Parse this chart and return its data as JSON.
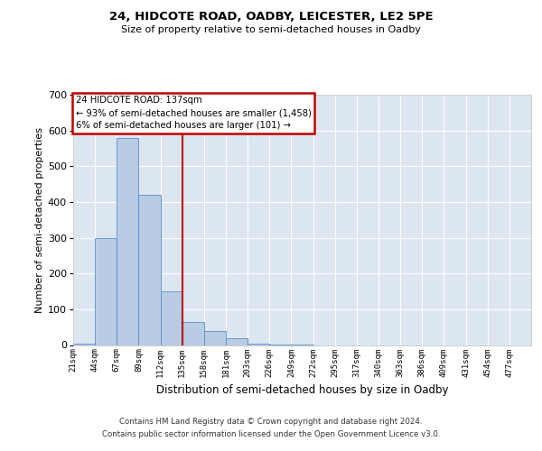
{
  "title_line1": "24, HIDCOTE ROAD, OADBY, LEICESTER, LE2 5PE",
  "title_line2": "Size of property relative to semi-detached houses in Oadby",
  "xlabel": "Distribution of semi-detached houses by size in Oadby",
  "ylabel": "Number of semi-detached properties",
  "bin_labels": [
    "21sqm",
    "44sqm",
    "67sqm",
    "89sqm",
    "112sqm",
    "135sqm",
    "158sqm",
    "181sqm",
    "203sqm",
    "226sqm",
    "249sqm",
    "272sqm",
    "295sqm",
    "317sqm",
    "340sqm",
    "363sqm",
    "386sqm",
    "409sqm",
    "431sqm",
    "454sqm",
    "477sqm"
  ],
  "bar_values": [
    5,
    300,
    580,
    420,
    150,
    65,
    40,
    20,
    5,
    2,
    1,
    0,
    0,
    0,
    0,
    0,
    0,
    0,
    0,
    0,
    0
  ],
  "bar_color": "#b8cce4",
  "bar_edge_color": "#5b8dc8",
  "vline_x": 5,
  "vline_color": "#c00000",
  "ylim": [
    0,
    700
  ],
  "yticks": [
    0,
    100,
    200,
    300,
    400,
    500,
    600,
    700
  ],
  "annotation_title": "24 HIDCOTE ROAD: 137sqm",
  "annotation_line1": "← 93% of semi-detached houses are smaller (1,458)",
  "annotation_line2": "6% of semi-detached houses are larger (101) →",
  "annotation_box_color": "#c00000",
  "footer_line1": "Contains HM Land Registry data © Crown copyright and database right 2024.",
  "footer_line2": "Contains public sector information licensed under the Open Government Licence v3.0.",
  "plot_bg_color": "#dce6f1",
  "grid_color": "#ffffff",
  "fig_bg_color": "#ffffff"
}
